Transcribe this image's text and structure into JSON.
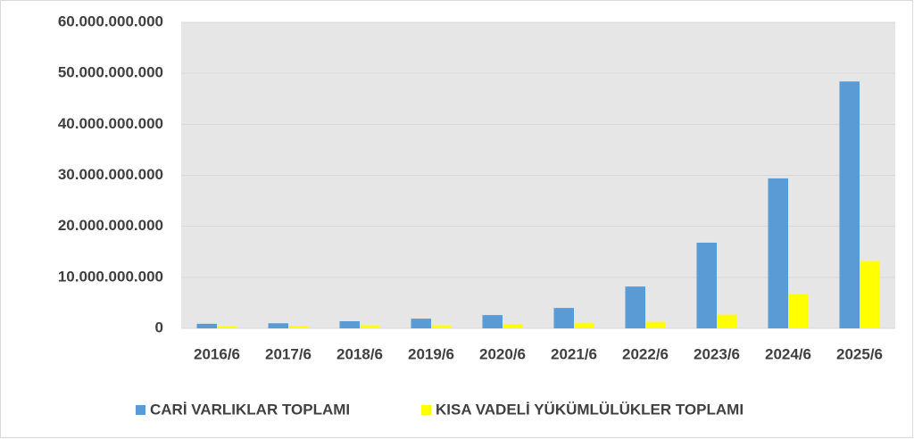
{
  "chart_data": {
    "type": "bar",
    "categories": [
      "2016/6",
      "2017/6",
      "2018/6",
      "2019/6",
      "2020/6",
      "2021/6",
      "2022/6",
      "2023/6",
      "2024/6",
      "2025/6"
    ],
    "series": [
      {
        "name": "CARİ VARLIKLAR TOPLAMI",
        "color": "#5b9bd5",
        "values": [
          900000000,
          1000000000,
          1400000000,
          1900000000,
          2600000000,
          4000000000,
          8200000000,
          16800000000,
          29400000000,
          48400000000
        ]
      },
      {
        "name": "KISA VADELİ YÜKÜMLÜLÜKLER TOPLAMI",
        "color": "#ffff00",
        "values": [
          400000000,
          500000000,
          600000000,
          600000000,
          800000000,
          1000000000,
          1300000000,
          2700000000,
          6700000000,
          13200000000
        ]
      }
    ],
    "ylim": [
      0,
      60000000000
    ],
    "yticks": [
      0,
      {
        "value": 10000000000,
        "label": "10.000.000.000"
      },
      {
        "value": 20000000000,
        "label": "20.000.000.000"
      },
      {
        "value": 30000000000,
        "label": "30.000.000.000"
      },
      {
        "value": 40000000000,
        "label": "40.000.000.000"
      },
      {
        "value": 50000000000,
        "label": "50.000.000.000"
      },
      {
        "value": 60000000000,
        "label": "60.000.000.000"
      }
    ],
    "grid": true,
    "legend": "bottom"
  }
}
